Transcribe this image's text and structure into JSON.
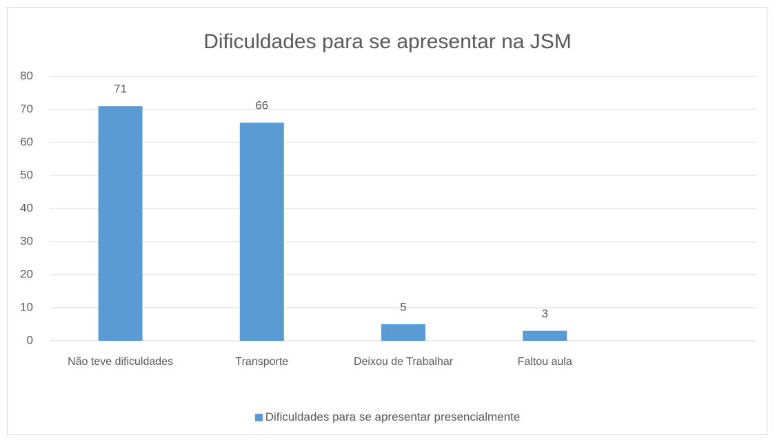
{
  "chart_data": {
    "type": "bar",
    "title": "Dificuldades para se apresentar na JSM",
    "categories": [
      "Não teve dificuldades",
      "Transporte",
      "Deixou de Trabalhar",
      "Faltou aula",
      null
    ],
    "series": [
      {
        "name": "Dificuldades para se apresentar presencialmente",
        "color": "#5b9bd5",
        "values": [
          71,
          66,
          5,
          3,
          null
        ]
      }
    ],
    "ylim": [
      0,
      80
    ],
    "yticks": [
      0,
      10,
      20,
      30,
      40,
      50,
      60,
      70,
      80
    ],
    "grid": true,
    "legend": "bottom"
  }
}
